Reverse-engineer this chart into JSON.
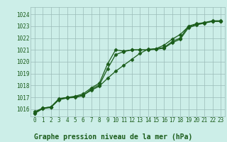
{
  "title": "Graphe pression niveau de la mer (hPa)",
  "background_color": "#cceee8",
  "grid_color": "#9bbbb8",
  "line_color": "#1a5c1a",
  "xlim": [
    -0.5,
    23.5
  ],
  "ylim": [
    1015.4,
    1024.6
  ],
  "yticks": [
    1016,
    1017,
    1018,
    1019,
    1020,
    1021,
    1022,
    1023,
    1024
  ],
  "xticks": [
    0,
    1,
    2,
    3,
    4,
    5,
    6,
    7,
    8,
    9,
    10,
    11,
    12,
    13,
    14,
    15,
    16,
    17,
    18,
    19,
    20,
    21,
    22,
    23
  ],
  "series1": [
    1015.7,
    1016.1,
    1016.2,
    1016.9,
    1017.0,
    1017.1,
    1017.3,
    1017.8,
    1018.2,
    1019.8,
    1021.0,
    1020.9,
    1021.0,
    1021.0,
    1021.0,
    1021.1,
    1021.2,
    1021.7,
    1022.0,
    1023.0,
    1023.2,
    1023.3,
    1023.4,
    1023.4
  ],
  "series2": [
    1015.8,
    1016.1,
    1016.2,
    1016.85,
    1017.0,
    1017.05,
    1017.2,
    1017.6,
    1017.95,
    1018.6,
    1019.2,
    1019.7,
    1020.2,
    1020.7,
    1021.05,
    1021.1,
    1021.4,
    1021.9,
    1022.3,
    1022.95,
    1023.15,
    1023.3,
    1023.45,
    1023.45
  ],
  "series3": [
    1015.65,
    1016.05,
    1016.15,
    1016.8,
    1016.95,
    1017.0,
    1017.15,
    1017.7,
    1018.05,
    1019.4,
    1020.6,
    1020.85,
    1021.0,
    1021.0,
    1021.0,
    1021.05,
    1021.15,
    1021.6,
    1021.9,
    1022.85,
    1023.1,
    1023.25,
    1023.4,
    1023.4
  ],
  "marker": "D",
  "markersize": 2.5,
  "linewidth": 0.9,
  "title_fontsize": 7,
  "tick_fontsize": 5.5
}
